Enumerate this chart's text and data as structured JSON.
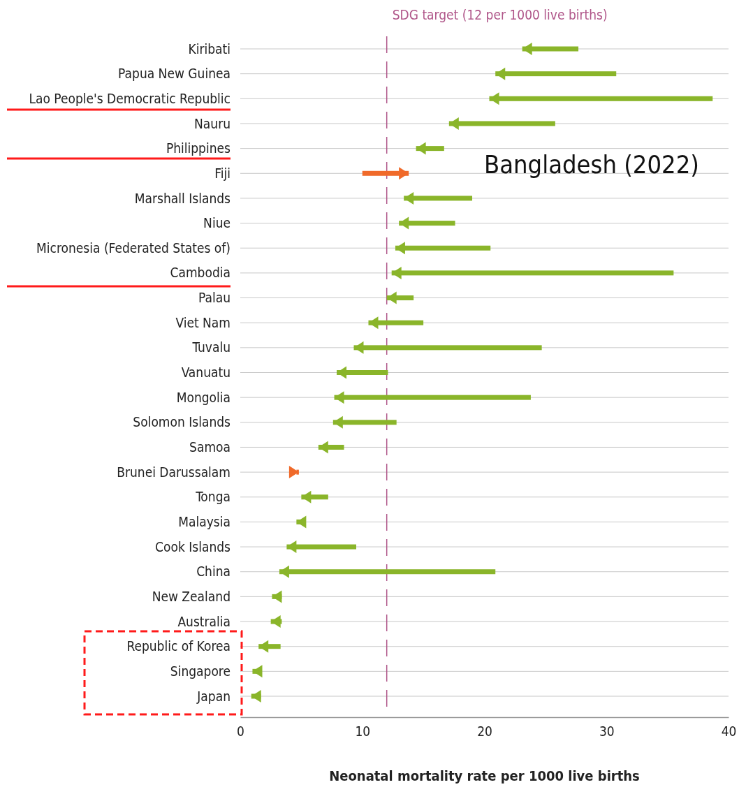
{
  "chart_data": {
    "type": "bar",
    "orientation": "horizontal",
    "xlabel": "Neonatal mortality rate per 1000 live births",
    "categories": [
      "Kiribati",
      "Papua New Guinea",
      "Lao People's Democratic Republic",
      "Nauru",
      "Philippines",
      "Fiji",
      "Marshall Islands",
      "Niue",
      "Micronesia (Federated States of)",
      "Cambodia",
      "Palau",
      "Viet Nam",
      "Tuvalu",
      "Vanuatu",
      "Mongolia",
      "Solomon Islands",
      "Samoa",
      "Brunei Darussalam",
      "Tonga",
      "Malaysia",
      "Cook Islands",
      "China",
      "New Zealand",
      "Australia",
      "Republic of Korea",
      "Singapore",
      "Japan"
    ],
    "base": [
      27.7,
      30.8,
      38.7,
      25.8,
      16.7,
      10.0,
      19.0,
      17.6,
      20.5,
      35.5,
      14.2,
      15.0,
      24.7,
      12.1,
      23.8,
      12.8,
      8.5,
      4.6,
      7.2,
      5.0,
      9.5,
      20.9,
      3.4,
      3.4,
      3.3,
      1.5,
      1.7
    ],
    "values": [
      -4.6,
      -9.9,
      -18.3,
      -8.7,
      -2.3,
      3.8,
      -5.6,
      -4.6,
      -7.8,
      -23.1,
      -2.2,
      -4.5,
      -15.4,
      -4.2,
      -16.1,
      -5.2,
      -2.1,
      0.2,
      -2.2,
      -0.4,
      -5.7,
      -17.7,
      -0.8,
      -0.9,
      -1.8,
      -0.5,
      -0.8
    ],
    "colors": [
      "#8ab52a",
      "#8ab52a",
      "#8ab52a",
      "#8ab52a",
      "#8ab52a",
      "#f06a2a",
      "#8ab52a",
      "#8ab52a",
      "#8ab52a",
      "#8ab52a",
      "#8ab52a",
      "#8ab52a",
      "#8ab52a",
      "#8ab52a",
      "#8ab52a",
      "#8ab52a",
      "#8ab52a",
      "#f06a2a",
      "#8ab52a",
      "#8ab52a",
      "#8ab52a",
      "#8ab52a",
      "#8ab52a",
      "#8ab52a",
      "#8ab52a",
      "#8ab52a",
      "#8ab52a"
    ],
    "xlim": [
      0,
      40
    ],
    "xticks": [
      0,
      10,
      20,
      30,
      40
    ],
    "grid": "y",
    "ref_lines": [
      {
        "axis": "x",
        "value": 12,
        "label": "SDG target (12 per 1000 live births)",
        "color": "#b0578a",
        "line_style": "dashed"
      }
    ],
    "annotations": [
      "Bangladesh (2022)"
    ]
  }
}
